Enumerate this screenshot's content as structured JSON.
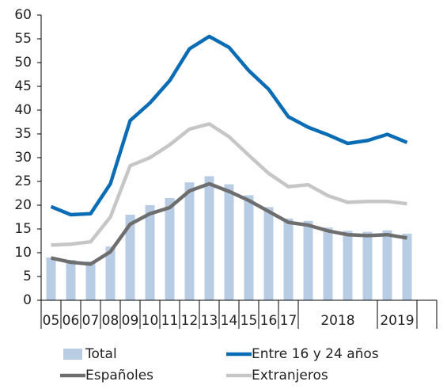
{
  "chart_data": {
    "type": "bar_line",
    "categories": [
      "05",
      "06",
      "07",
      "08",
      "09",
      "10",
      "11",
      "12",
      "13",
      "14",
      "15",
      "16",
      "17",
      null,
      null,
      null,
      null,
      null,
      null
    ],
    "x_groups": [
      {
        "label": "2018",
        "start": 13,
        "end": 17
      },
      {
        "label": "2019",
        "start": 17,
        "end": 19
      }
    ],
    "series": [
      {
        "name": "Total",
        "kind": "bar",
        "color": "#b8cce4",
        "values": [
          9,
          8.5,
          8.2,
          11.3,
          18,
          20,
          21.5,
          24.8,
          26.1,
          24.4,
          22.1,
          19.6,
          17.2,
          16.7,
          15.3,
          14.6,
          14.4,
          14.7,
          14
        ]
      },
      {
        "name": "Entre 16 y 24 años",
        "kind": "line",
        "color": "#0a6cb4",
        "values": [
          19.7,
          18,
          18.2,
          24.5,
          37.8,
          41.5,
          46.2,
          52.9,
          55.5,
          53.2,
          48.3,
          44.4,
          38.6,
          36.4,
          34.8,
          33,
          33.6,
          34.9,
          33.2
        ]
      },
      {
        "name": "Españoles",
        "kind": "line",
        "color": "#6e6e6e",
        "values": [
          8.9,
          8,
          7.6,
          10.2,
          16,
          18.2,
          19.5,
          23,
          24.5,
          22.9,
          21,
          18.7,
          16.4,
          15.8,
          14.6,
          13.8,
          13.6,
          13.8,
          13.1
        ]
      },
      {
        "name": "Extranjeros",
        "kind": "line",
        "color": "#c6c6c6",
        "values": [
          11.6,
          11.8,
          12.3,
          17.5,
          28.3,
          30,
          32.7,
          36,
          37.1,
          34.4,
          30.5,
          26.7,
          23.9,
          24.3,
          22,
          20.6,
          20.8,
          20.8,
          20.3
        ]
      }
    ],
    "ylim": [
      0,
      60
    ],
    "yticks": [
      0,
      5,
      10,
      15,
      20,
      25,
      30,
      35,
      40,
      45,
      50,
      55,
      60
    ]
  }
}
